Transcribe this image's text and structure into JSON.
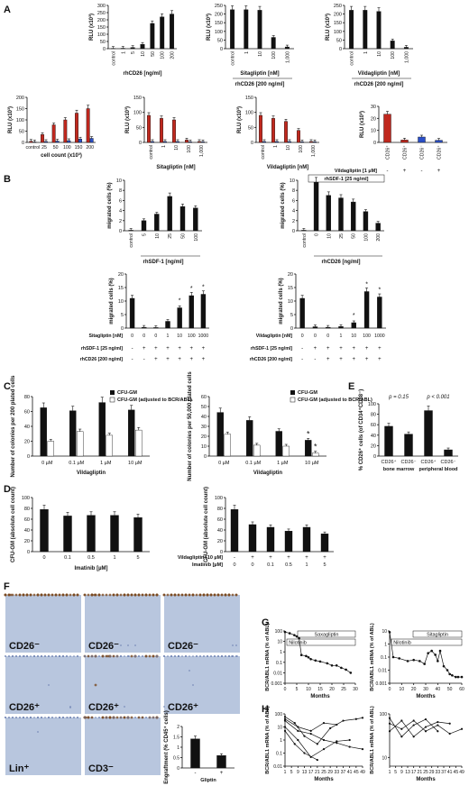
{
  "panels": {
    "A": "A",
    "B": "B",
    "C": "C",
    "D": "D",
    "E": "E",
    "F": "F",
    "G": "G",
    "H": "H"
  },
  "labels": {
    "rlu": "RLU (x10³)",
    "migrated": "migrated cells (%)",
    "colonies_200": "Number of colonies per 200 plated cells",
    "colonies_50000": "Number of colonies per 50,000 plated cells",
    "cfu_gm_abs": "CFU-GM (absolute cell count)",
    "cd26_pct": "% CD26⁺ cells (of CD34⁺CD38⁻)",
    "bcr_abl": "BCR/ABL1 mRNA (% of ABL)",
    "months": "Months",
    "legend_cfu": "CFU-GM",
    "legend_cfu_adj": "CFU-GM (adjusted to BCR/ABL)",
    "sitagliptin": "Sitagliptin",
    "vildagliptin": "Vildagliptin",
    "nilotinib": "Nilotinib",
    "gliptin": "Gliptin",
    "engraft": "Engraftment (% CD45⁺ cells)"
  },
  "panel_a": {
    "row1": [
      {
        "ylim": [
          0,
          300
        ],
        "yticks": [
          "0",
          "50",
          "100",
          "150",
          "200",
          "250",
          "300"
        ],
        "categories": [
          "control",
          "1",
          "5",
          "10",
          "50",
          "100",
          "200"
        ],
        "values": [
          2,
          3,
          8,
          30,
          175,
          220,
          240
        ],
        "xlabel": "rhCD26 [ng/ml]"
      },
      {
        "ylim": [
          0,
          250
        ],
        "yticks": [
          "0",
          "50",
          "100",
          "150",
          "200",
          "250"
        ],
        "categories": [
          "control",
          "1",
          "10",
          "100",
          "1,000"
        ],
        "values": [
          225,
          225,
          222,
          65,
          10
        ],
        "xlabel": "Sitagliptin [nM]",
        "sub": "rhCD26 [200 ng/ml]"
      },
      {
        "ylim": [
          0,
          250
        ],
        "yticks": [
          "0",
          "50",
          "100",
          "150",
          "200",
          "250"
        ],
        "categories": [
          "control",
          "1",
          "10",
          "100",
          "1,000"
        ],
        "values": [
          222,
          222,
          215,
          45,
          8
        ],
        "xlabel": "Vildagliptin [nM]",
        "sub": "rhCD26 [200 ng/ml]"
      }
    ],
    "row2": [
      {
        "ylim": [
          0,
          200
        ],
        "yticks": [
          "0",
          "50",
          "100",
          "150",
          "200"
        ],
        "categories": [
          "control",
          "25",
          "50",
          "100",
          "150",
          "200"
        ],
        "red": [
          5,
          35,
          78,
          100,
          130,
          150
        ],
        "blue": [
          2,
          4,
          6,
          8,
          15,
          18
        ],
        "xlabel": "cell count (x10³)"
      },
      {
        "ylim": [
          0,
          150
        ],
        "yticks": [
          "0",
          "50",
          "100",
          "150"
        ],
        "categories": [
          "control",
          "1",
          "10",
          "100",
          "1,000"
        ],
        "red": [
          90,
          80,
          75,
          8,
          3
        ],
        "blue": [
          3,
          3,
          3,
          2,
          2
        ],
        "xlabel": "Sitagliptin [nM]"
      },
      {
        "ylim": [
          0,
          150
        ],
        "yticks": [
          "0",
          "50",
          "100",
          "150"
        ],
        "categories": [
          "control",
          "1",
          "10",
          "100",
          "1,000"
        ],
        "red": [
          90,
          80,
          70,
          40,
          3
        ],
        "blue": [
          3,
          3,
          3,
          2,
          2
        ],
        "xlabel": "Vildagliptin [nM]"
      },
      {
        "ylim": [
          0,
          30
        ],
        "yticks": [
          "0",
          "10",
          "20",
          "30"
        ],
        "categories": [
          "CD26⁺",
          "CD26⁺",
          "CD26⁻",
          "CD26⁺"
        ],
        "values": [
          23.5,
          2,
          4.5,
          1.8
        ],
        "colors": [
          "#c0281e",
          "#c0281e",
          "#2a4fc8",
          "#2a4fc8"
        ],
        "vilda_label": "Vildagliptin [1 µM]",
        "vilda_signs": [
          "-",
          "+",
          "-",
          "+"
        ]
      }
    ]
  },
  "panel_b": {
    "top_left": {
      "ylim": [
        0,
        10
      ],
      "yticks": [
        "0",
        "2",
        "4",
        "6",
        "8",
        "10"
      ],
      "categories": [
        "control",
        "5",
        "10",
        "25",
        "50",
        "100"
      ],
      "values": [
        0.1,
        2.0,
        3.3,
        6.8,
        4.8,
        4.5
      ],
      "xlabel": "rhSDF-1 [ng/ml]"
    },
    "top_right": {
      "ylim": [
        0,
        10
      ],
      "yticks": [
        "0",
        "2",
        "4",
        "6",
        "8",
        "10"
      ],
      "categories": [
        "control",
        "0",
        "10",
        "25",
        "50",
        "100",
        "200"
      ],
      "values": [
        0.1,
        9.6,
        7.0,
        6.5,
        5.7,
        3.8,
        1.5
      ],
      "xlabel": "rhCD26 [ng/ml]",
      "bracket": "rhSDF-1 [25 ng/ml]"
    },
    "bottom_left": {
      "ylim": [
        0,
        20
      ],
      "yticks": [
        "0",
        "5",
        "10",
        "15",
        "20"
      ],
      "values": [
        11,
        0.3,
        0.2,
        2.5,
        7.5,
        12,
        12.5
      ],
      "cols": [
        "0",
        "0",
        "0",
        "1",
        "10",
        "100",
        "1000"
      ],
      "drug": "Sitagliptin [nM]",
      "sdf": [
        "-",
        "+",
        "+",
        "+",
        "+",
        "+",
        "+"
      ],
      "cd26": [
        "-",
        "-",
        "+",
        "+",
        "+",
        "+",
        "+"
      ]
    },
    "bottom_right": {
      "ylim": [
        0,
        20
      ],
      "yticks": [
        "0",
        "5",
        "10",
        "15",
        "20"
      ],
      "values": [
        11,
        0.5,
        0.3,
        0.6,
        2.0,
        13.5,
        11.5
      ],
      "cols": [
        "0",
        "0",
        "0",
        "1",
        "10",
        "100",
        "1000"
      ],
      "drug": "Vildagliptin [nM]",
      "sdf": [
        "-",
        "+",
        "+",
        "+",
        "+",
        "+",
        "+"
      ],
      "cd26": [
        "-",
        "-",
        "+",
        "+",
        "+",
        "+",
        "+"
      ]
    },
    "row_sdf": "rhSDF-1 [25 ng/ml]",
    "row_cd26": "rhCD26 [200 ng/ml]"
  },
  "panel_c": {
    "left": {
      "ylim": [
        0,
        80
      ],
      "yticks": [
        "0",
        "20",
        "40",
        "60",
        "80"
      ],
      "categories": [
        "0 µM",
        "0.1 µM",
        "1 µM",
        "10 µM"
      ],
      "filled": [
        65,
        61,
        72,
        62
      ],
      "open": [
        20,
        33,
        28,
        35
      ],
      "xlabel": "Vildagliptin"
    },
    "right": {
      "ylim": [
        0,
        60
      ],
      "yticks": [
        "0",
        "10",
        "20",
        "30",
        "40",
        "50",
        "60"
      ],
      "categories": [
        "0 µM",
        "0.1 µM",
        "1 µM",
        "10 µM"
      ],
      "filled": [
        44,
        36,
        25,
        16
      ],
      "open": [
        22,
        11,
        10,
        3
      ],
      "xlabel": "Vildagliptin"
    }
  },
  "panel_d": {
    "left": {
      "ylim": [
        0,
        100
      ],
      "yticks": [
        "0",
        "20",
        "40",
        "60",
        "80",
        "100"
      ],
      "categories": [
        "0",
        "0.1",
        "0.5",
        "1",
        "5"
      ],
      "values": [
        78,
        66,
        67,
        67,
        63
      ],
      "xlabel": "Imatinib [µM]"
    },
    "right": {
      "ylim": [
        0,
        100
      ],
      "yticks": [
        "0",
        "20",
        "40",
        "60",
        "80",
        "100"
      ],
      "values": [
        78,
        50,
        45,
        38,
        45,
        33
      ],
      "vilda": [
        "-",
        "+",
        "+",
        "+",
        "+",
        "+"
      ],
      "ima": [
        "0",
        "0",
        "0.1",
        "0.5",
        "1",
        "5"
      ],
      "row1": "Vildagliptin [10 µM]",
      "row2": "Imatinib [µM]"
    }
  },
  "panel_e": {
    "ylim": [
      0,
      100
    ],
    "yticks": [
      "0",
      "20",
      "40",
      "60",
      "80",
      "100"
    ],
    "values": [
      57,
      42,
      87,
      12
    ],
    "categories": [
      "CD26⁺",
      "CD26⁻",
      "CD26⁺",
      "CD26⁻"
    ],
    "groups": [
      "bone marrow",
      "peripheral blood"
    ],
    "p1": "p = 0.15",
    "p2": "p < 0.001"
  },
  "panel_f": {
    "tiles": [
      "CD26⁻",
      "CD26⁻",
      "CD26⁻",
      "CD26⁺",
      "CD26⁺",
      "CD26⁺",
      "Lin⁺",
      "CD3⁻"
    ],
    "inset": {
      "ylim": [
        0,
        2
      ],
      "yticks": [
        "0",
        "0.5",
        "1",
        "1.5",
        "2"
      ],
      "values": [
        1.4,
        0.6
      ],
      "signs": [
        "-",
        "+"
      ],
      "xlabel": "Gliptin"
    }
  },
  "panel_g": {
    "left": {
      "yticks": [
        "100",
        "10",
        "1",
        "0.1",
        "0.01",
        "0.001"
      ],
      "xticks": [
        "0",
        "5",
        "10",
        "15",
        "20",
        "25",
        "30"
      ],
      "bar1": "Saxagliptin",
      "bar2": "Nilotinib",
      "points": [
        [
          0,
          80
        ],
        [
          2,
          60
        ],
        [
          4,
          40
        ],
        [
          5,
          30
        ],
        [
          6,
          20
        ],
        [
          7,
          0.5
        ],
        [
          9,
          0.4
        ],
        [
          10,
          0.3
        ],
        [
          11,
          0.2
        ],
        [
          13,
          0.15
        ],
        [
          15,
          0.12
        ],
        [
          18,
          0.08
        ],
        [
          20,
          0.05
        ],
        [
          22,
          0.05
        ],
        [
          24,
          0.03
        ],
        [
          26,
          0.02
        ],
        [
          28,
          0.01
        ]
      ]
    },
    "right": {
      "yticks": [
        "10",
        "1",
        "0.1",
        "0.01",
        "0.001"
      ],
      "xticks": [
        "0",
        "10",
        "20",
        "30",
        "40",
        "50",
        "60"
      ],
      "bar1": "Sitagliptin",
      "bar2": "Nilotinib",
      "points": [
        [
          0,
          8
        ],
        [
          3,
          0.1
        ],
        [
          8,
          0.08
        ],
        [
          15,
          0.05
        ],
        [
          20,
          0.06
        ],
        [
          25,
          0.05
        ],
        [
          29,
          0.03
        ],
        [
          32,
          0.2
        ],
        [
          35,
          0.3
        ],
        [
          38,
          0.15
        ],
        [
          40,
          0.05
        ],
        [
          42,
          0.3
        ],
        [
          45,
          0.02
        ],
        [
          48,
          0.01
        ],
        [
          50,
          0.005
        ],
        [
          52,
          0.004
        ],
        [
          55,
          0.003
        ],
        [
          57,
          0.003
        ],
        [
          60,
          0.003
        ]
      ]
    }
  },
  "panel_h": {
    "left": {
      "yticks": [
        "100",
        "10",
        "1",
        "0.1",
        "0.01"
      ],
      "xticks": [
        "1",
        "5",
        "9",
        "13",
        "17",
        "21",
        "25",
        "29",
        "33",
        "37",
        "41",
        "45",
        "49"
      ]
    },
    "right": {
      "yticks": [
        "100",
        "10"
      ],
      "xticks": [
        "1",
        "5",
        "9",
        "13",
        "17",
        "21",
        "25",
        "29",
        "33",
        "37",
        "41",
        "45",
        "49"
      ]
    }
  }
}
